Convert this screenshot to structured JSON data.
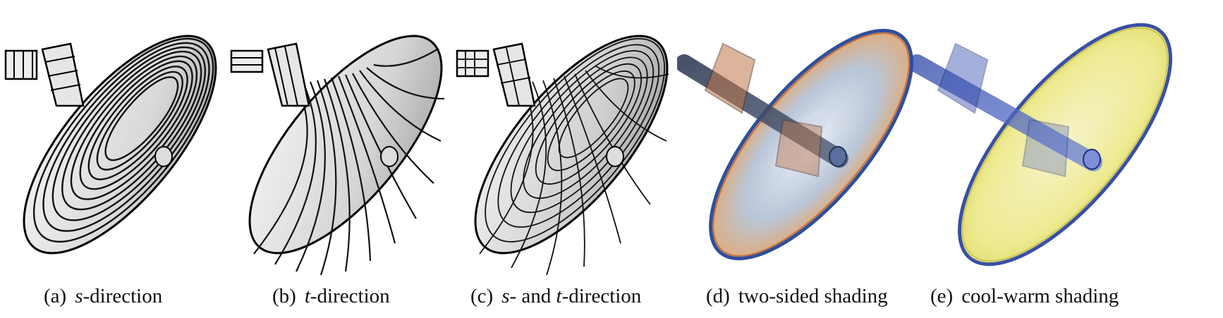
{
  "figure": {
    "panels": [
      {
        "tag": "(a)",
        "pre": "",
        "v1": "s",
        "mid": "-direction",
        "v2": "",
        "post": ""
      },
      {
        "tag": "(b)",
        "pre": "",
        "v1": "t",
        "mid": "-direction",
        "v2": "",
        "post": ""
      },
      {
        "tag": "(c)",
        "pre": "",
        "v1": "s",
        "mid": "- and ",
        "v2": "t",
        "post": "-direction"
      },
      {
        "tag": "(d)",
        "pre": "two-sided shading",
        "v1": "",
        "mid": "",
        "v2": "",
        "post": ""
      },
      {
        "tag": "(e)",
        "pre": "cool-warm shading",
        "v1": "",
        "mid": "",
        "v2": "",
        "post": ""
      }
    ]
  }
}
